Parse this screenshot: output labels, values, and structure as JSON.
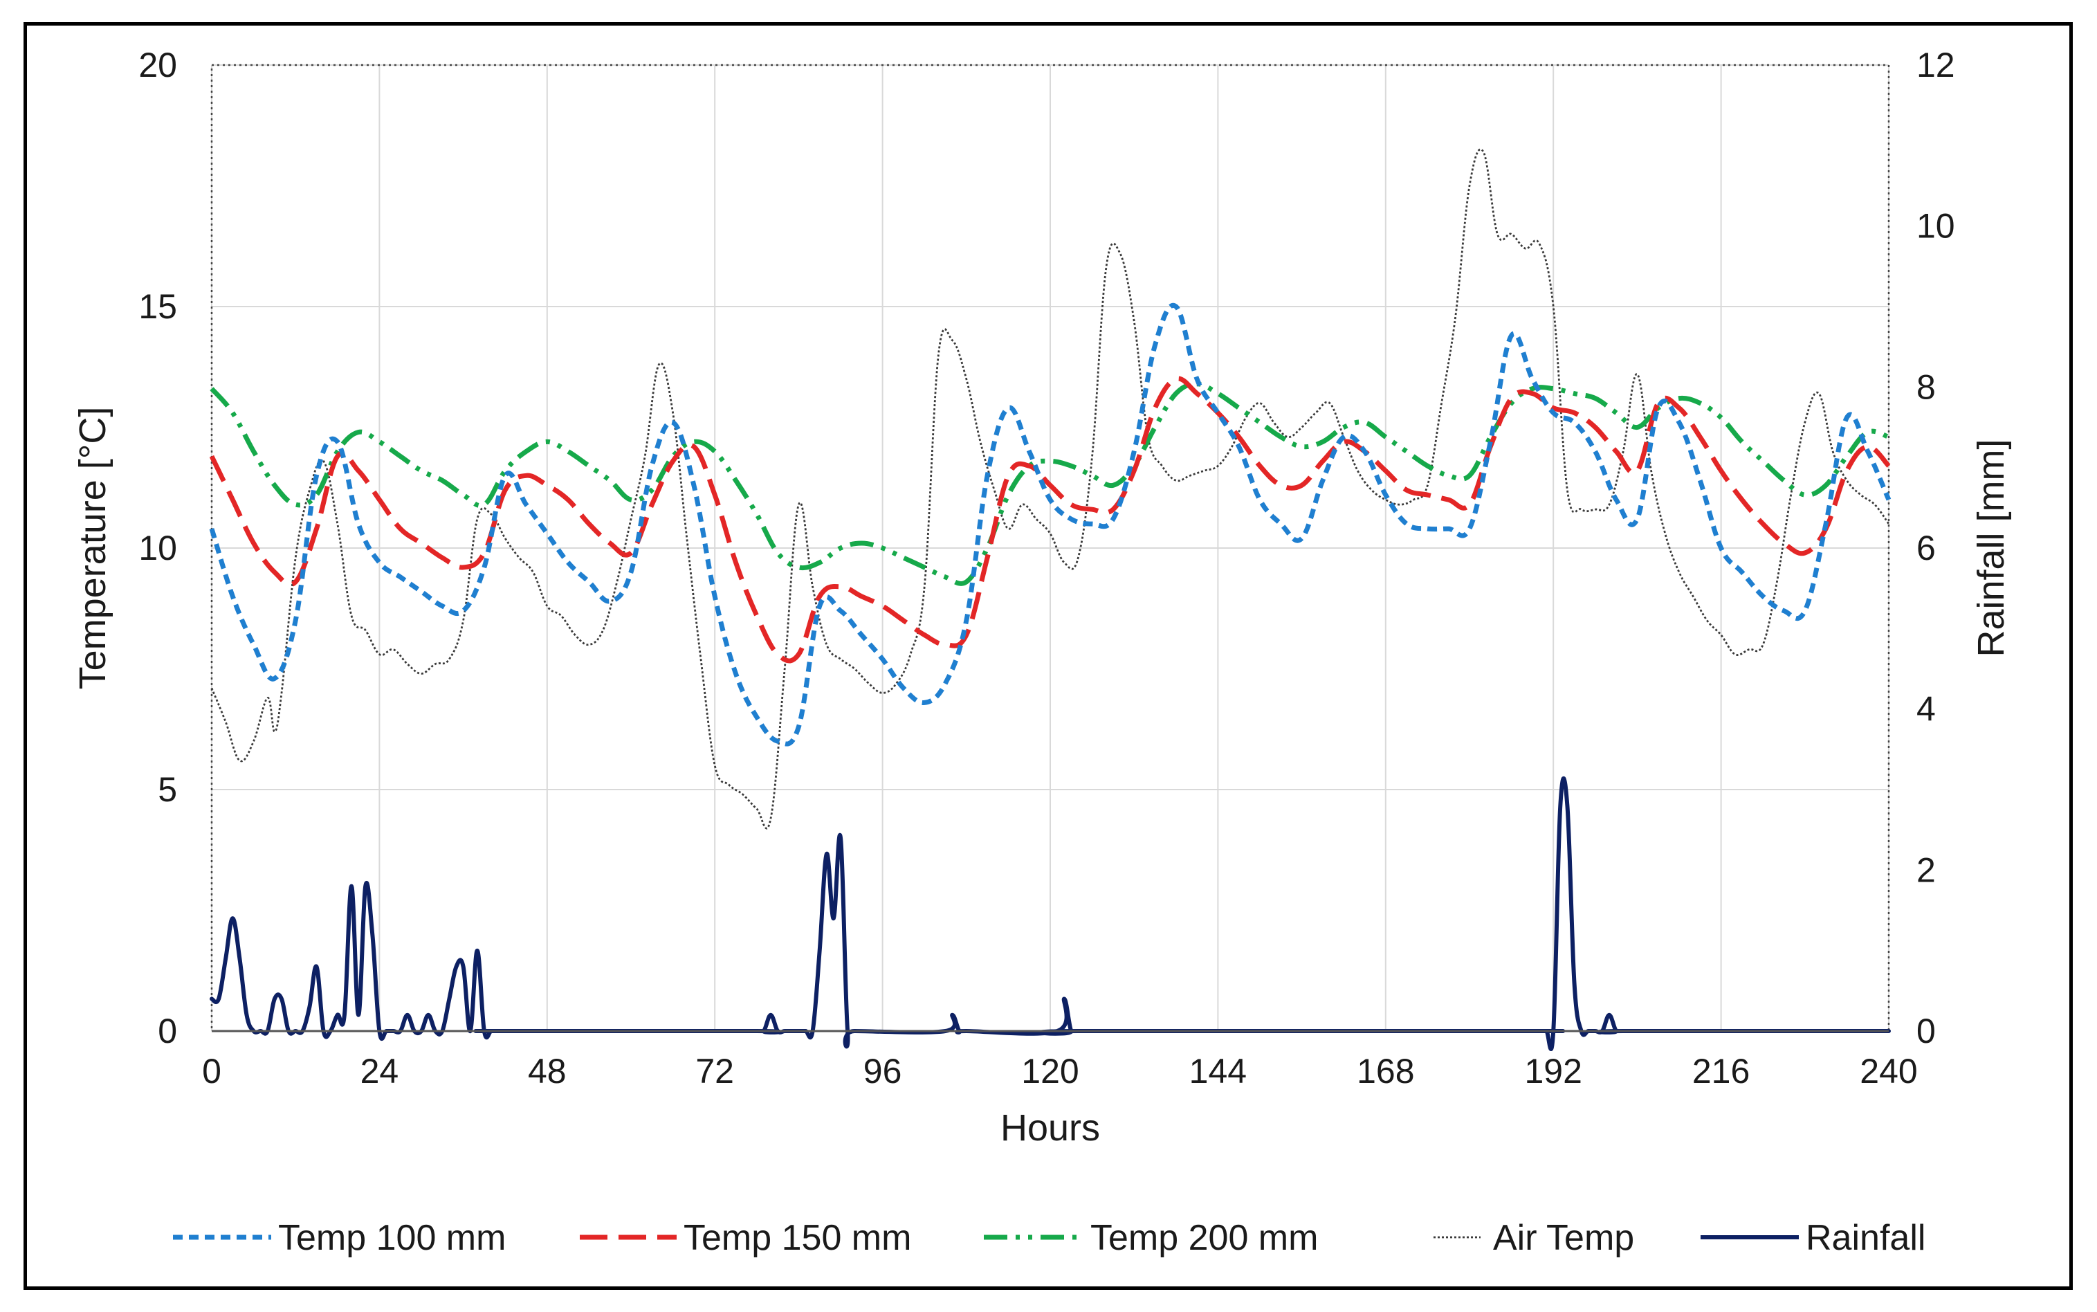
{
  "chart_data": {
    "type": "line",
    "title": "",
    "xlabel": "Hours",
    "ylabel_left": "Temperature [°C]",
    "ylabel_right": "Rainfall [mm]",
    "xlim": [
      0,
      240
    ],
    "ylim_left": [
      0,
      20
    ],
    "ylim_right": [
      0,
      12
    ],
    "x_ticks": [
      0,
      24,
      48,
      72,
      96,
      120,
      144,
      168,
      192,
      216,
      240
    ],
    "y_ticks_left": [
      0,
      5,
      10,
      15,
      20
    ],
    "y_ticks_right": [
      0,
      2,
      4,
      6,
      8,
      10,
      12
    ],
    "grid": "vertical-and-horizontal",
    "legend_position": "bottom",
    "series": [
      {
        "name": "Temp 100 mm",
        "axis": "left",
        "color": "#1f7fd0",
        "style": "short-dash",
        "x": [
          0,
          3,
          6,
          9,
          12,
          15,
          18,
          21,
          24,
          27,
          30,
          33,
          36,
          39,
          42,
          45,
          48,
          51,
          54,
          57,
          60,
          63,
          66,
          69,
          72,
          75,
          78,
          81,
          84,
          87,
          90,
          93,
          96,
          99,
          102,
          105,
          108,
          111,
          114,
          117,
          120,
          123,
          126,
          129,
          132,
          135,
          138,
          141,
          144,
          147,
          150,
          153,
          156,
          159,
          162,
          165,
          168,
          171,
          174,
          177,
          180,
          183,
          186,
          189,
          192,
          195,
          198,
          201,
          204,
          207,
          210,
          213,
          216,
          219,
          222,
          225,
          228,
          231,
          234,
          237,
          240
        ],
        "values": [
          10.4,
          9.0,
          8.0,
          7.3,
          8.5,
          11.5,
          12.2,
          10.5,
          9.7,
          9.4,
          9.1,
          8.8,
          8.7,
          9.6,
          11.5,
          10.9,
          10.3,
          9.7,
          9.3,
          8.9,
          9.5,
          11.7,
          12.6,
          11.3,
          9.0,
          7.4,
          6.5,
          6.0,
          6.3,
          8.8,
          8.7,
          8.2,
          7.7,
          7.1,
          6.8,
          7.2,
          8.5,
          11.5,
          12.9,
          12.0,
          11.0,
          10.6,
          10.5,
          10.6,
          12.0,
          14.2,
          15.0,
          13.5,
          12.8,
          12.1,
          11.0,
          10.5,
          10.2,
          11.4,
          12.3,
          12.0,
          11.1,
          10.5,
          10.4,
          10.4,
          10.4,
          12.2,
          14.4,
          13.5,
          12.8,
          12.6,
          12.0,
          11.0,
          10.6,
          12.9,
          12.6,
          11.4,
          10.0,
          9.5,
          9.0,
          8.7,
          8.7,
          10.5,
          12.7,
          12.0,
          11.0
        ]
      },
      {
        "name": "Temp 150 mm",
        "axis": "left",
        "color": "#e32626",
        "style": "long-dash",
        "x": [
          0,
          3,
          6,
          9,
          12,
          15,
          18,
          21,
          24,
          27,
          30,
          33,
          36,
          39,
          42,
          45,
          48,
          51,
          54,
          57,
          60,
          63,
          66,
          69,
          72,
          75,
          78,
          81,
          84,
          87,
          90,
          93,
          96,
          99,
          102,
          105,
          108,
          111,
          114,
          117,
          120,
          123,
          126,
          129,
          132,
          135,
          138,
          141,
          144,
          147,
          150,
          153,
          156,
          159,
          162,
          165,
          168,
          171,
          174,
          177,
          180,
          183,
          186,
          189,
          192,
          195,
          198,
          201,
          204,
          207,
          210,
          213,
          216,
          219,
          222,
          225,
          228,
          231,
          234,
          237,
          240
        ],
        "values": [
          11.9,
          11.0,
          10.1,
          9.5,
          9.3,
          10.4,
          11.9,
          11.6,
          11.0,
          10.4,
          10.1,
          9.8,
          9.6,
          9.9,
          11.2,
          11.5,
          11.3,
          11.0,
          10.5,
          10.1,
          9.9,
          10.9,
          11.8,
          12.1,
          11.1,
          9.7,
          8.6,
          7.8,
          7.8,
          9.0,
          9.2,
          9.0,
          8.8,
          8.5,
          8.2,
          8.0,
          8.2,
          9.8,
          11.5,
          11.7,
          11.3,
          10.9,
          10.8,
          10.8,
          11.6,
          12.9,
          13.5,
          13.2,
          12.8,
          12.3,
          11.7,
          11.3,
          11.3,
          11.8,
          12.2,
          12.0,
          11.6,
          11.2,
          11.1,
          11.0,
          10.9,
          12.1,
          13.1,
          13.2,
          12.9,
          12.8,
          12.5,
          12.0,
          11.6,
          13.0,
          12.9,
          12.3,
          11.6,
          11.0,
          10.5,
          10.1,
          9.9,
          10.4,
          11.6,
          12.1,
          11.7
        ]
      },
      {
        "name": "Temp 200 mm",
        "axis": "left",
        "color": "#16a94a",
        "style": "dash-dot-dot",
        "x": [
          0,
          3,
          6,
          9,
          12,
          15,
          18,
          21,
          24,
          27,
          30,
          33,
          36,
          39,
          42,
          45,
          48,
          51,
          54,
          57,
          60,
          63,
          66,
          69,
          72,
          75,
          78,
          81,
          84,
          87,
          90,
          93,
          96,
          99,
          102,
          105,
          108,
          111,
          114,
          117,
          120,
          123,
          126,
          129,
          132,
          135,
          138,
          141,
          144,
          147,
          150,
          153,
          156,
          159,
          162,
          165,
          168,
          171,
          174,
          177,
          180,
          183,
          186,
          189,
          192,
          195,
          198,
          201,
          204,
          207,
          210,
          213,
          216,
          219,
          222,
          225,
          228,
          231,
          234,
          237,
          240
        ],
        "values": [
          13.3,
          12.8,
          12.0,
          11.3,
          10.9,
          11.1,
          12.0,
          12.4,
          12.2,
          11.9,
          11.6,
          11.4,
          11.1,
          10.9,
          11.6,
          12.0,
          12.2,
          12.0,
          11.7,
          11.4,
          11.0,
          11.2,
          11.9,
          12.2,
          12.0,
          11.4,
          10.7,
          9.9,
          9.6,
          9.7,
          10.0,
          10.1,
          10.0,
          9.8,
          9.6,
          9.4,
          9.3,
          10.0,
          11.1,
          11.7,
          11.8,
          11.7,
          11.5,
          11.3,
          11.7,
          12.5,
          13.2,
          13.4,
          13.2,
          12.9,
          12.6,
          12.3,
          12.1,
          12.2,
          12.5,
          12.6,
          12.3,
          12.0,
          11.7,
          11.5,
          11.5,
          12.3,
          13.0,
          13.3,
          13.3,
          13.2,
          13.1,
          12.8,
          12.5,
          12.9,
          13.1,
          13.0,
          12.7,
          12.2,
          11.8,
          11.4,
          11.1,
          11.3,
          11.9,
          12.4,
          12.3
        ]
      },
      {
        "name": "Air Temp",
        "axis": "left",
        "color": "#3a3a3a",
        "style": "dotted",
        "x": [
          0,
          2,
          4,
          6,
          8,
          9,
          10,
          12,
          14,
          16,
          18,
          20,
          22,
          24,
          26,
          28,
          30,
          32,
          34,
          36,
          38,
          40,
          42,
          44,
          46,
          48,
          50,
          52,
          54,
          56,
          58,
          60,
          62,
          64,
          66,
          68,
          70,
          72,
          74,
          76,
          78,
          80,
          82,
          84,
          86,
          88,
          90,
          92,
          94,
          96,
          98,
          100,
          102,
          104,
          106,
          108,
          110,
          112,
          114,
          116,
          118,
          120,
          122,
          124,
          126,
          128,
          130,
          132,
          134,
          136,
          138,
          140,
          142,
          144,
          146,
          148,
          150,
          152,
          154,
          156,
          158,
          160,
          162,
          164,
          166,
          168,
          170,
          172,
          174,
          176,
          178,
          180,
          182,
          184,
          186,
          188,
          190,
          192,
          194,
          196,
          198,
          200,
          202,
          204,
          206,
          208,
          210,
          212,
          214,
          216,
          218,
          220,
          222,
          224,
          226,
          228,
          230,
          232,
          234,
          236,
          238,
          240
        ],
        "values": [
          7.1,
          6.4,
          5.6,
          6.0,
          6.9,
          6.2,
          7.0,
          9.8,
          11.2,
          11.8,
          10.5,
          8.6,
          8.3,
          7.8,
          7.9,
          7.6,
          7.4,
          7.6,
          7.7,
          8.5,
          10.6,
          10.7,
          10.2,
          9.8,
          9.5,
          8.8,
          8.6,
          8.2,
          8.0,
          8.3,
          9.3,
          10.6,
          11.9,
          13.8,
          12.8,
          10.2,
          7.7,
          5.5,
          5.1,
          4.9,
          4.6,
          4.4,
          7.5,
          10.9,
          9.2,
          8.0,
          7.7,
          7.5,
          7.2,
          7.0,
          7.2,
          7.8,
          9.2,
          14.0,
          14.3,
          13.5,
          12.2,
          11.2,
          10.4,
          10.9,
          10.6,
          10.3,
          9.7,
          9.8,
          11.9,
          15.8,
          16.1,
          14.7,
          12.3,
          11.7,
          11.4,
          11.5,
          11.6,
          11.7,
          12.1,
          12.7,
          13.0,
          12.6,
          12.3,
          12.5,
          12.8,
          13.0,
          12.3,
          11.6,
          11.2,
          11.0,
          10.9,
          11.0,
          11.3,
          13.0,
          14.8,
          17.5,
          18.2,
          16.5,
          16.5,
          16.2,
          16.3,
          15.0,
          11.2,
          10.8,
          10.8,
          10.9,
          12.0,
          13.6,
          11.6,
          10.3,
          9.5,
          9.0,
          8.5,
          8.2,
          7.8,
          7.9,
          8.0,
          9.3,
          11.1,
          12.6,
          13.2,
          12.0,
          11.4,
          11.1,
          10.9,
          10.5
        ]
      },
      {
        "name": "Rainfall",
        "axis": "right",
        "color": "#0d2063",
        "style": "solid",
        "x": [
          0,
          1,
          2,
          3,
          4,
          5,
          6,
          7,
          8,
          9,
          10,
          11,
          12,
          13,
          14,
          15,
          16,
          17,
          18,
          19,
          20,
          21,
          22,
          23,
          24,
          25,
          26,
          27,
          28,
          29,
          30,
          31,
          32,
          33,
          34,
          35,
          36,
          37,
          38,
          39,
          40,
          41,
          78,
          79,
          80,
          81,
          82,
          83,
          84,
          85,
          86,
          87,
          88,
          89,
          90,
          91,
          92,
          105,
          106,
          107,
          108,
          121,
          122,
          123,
          124,
          188,
          189,
          190,
          191,
          192,
          193,
          194,
          195,
          196,
          197,
          198,
          199,
          200,
          201,
          202,
          240
        ],
        "values": [
          0.4,
          0.4,
          0.9,
          1.4,
          0.9,
          0.2,
          0.0,
          0.0,
          0.0,
          0.4,
          0.4,
          0.0,
          0.0,
          0.0,
          0.3,
          0.8,
          0.0,
          0.0,
          0.2,
          0.2,
          1.8,
          0.2,
          1.8,
          1.2,
          0.0,
          0.0,
          0.0,
          0.0,
          0.2,
          0.0,
          0.0,
          0.2,
          0.0,
          0.0,
          0.4,
          0.8,
          0.8,
          0.0,
          1.0,
          0.0,
          0.0,
          0.0,
          0.0,
          0.0,
          0.2,
          0.0,
          0.0,
          0.0,
          0.0,
          0.0,
          0.0,
          1.0,
          2.2,
          1.4,
          2.4,
          0.0,
          0.0,
          0.0,
          0.2,
          0.0,
          0.0,
          0.0,
          0.4,
          0.0,
          0.0,
          0.0,
          0.0,
          0.0,
          0.0,
          0.0,
          2.8,
          2.8,
          0.6,
          0.0,
          0.0,
          0.0,
          0.0,
          0.2,
          0.0,
          0.0,
          0.0
        ]
      }
    ]
  }
}
